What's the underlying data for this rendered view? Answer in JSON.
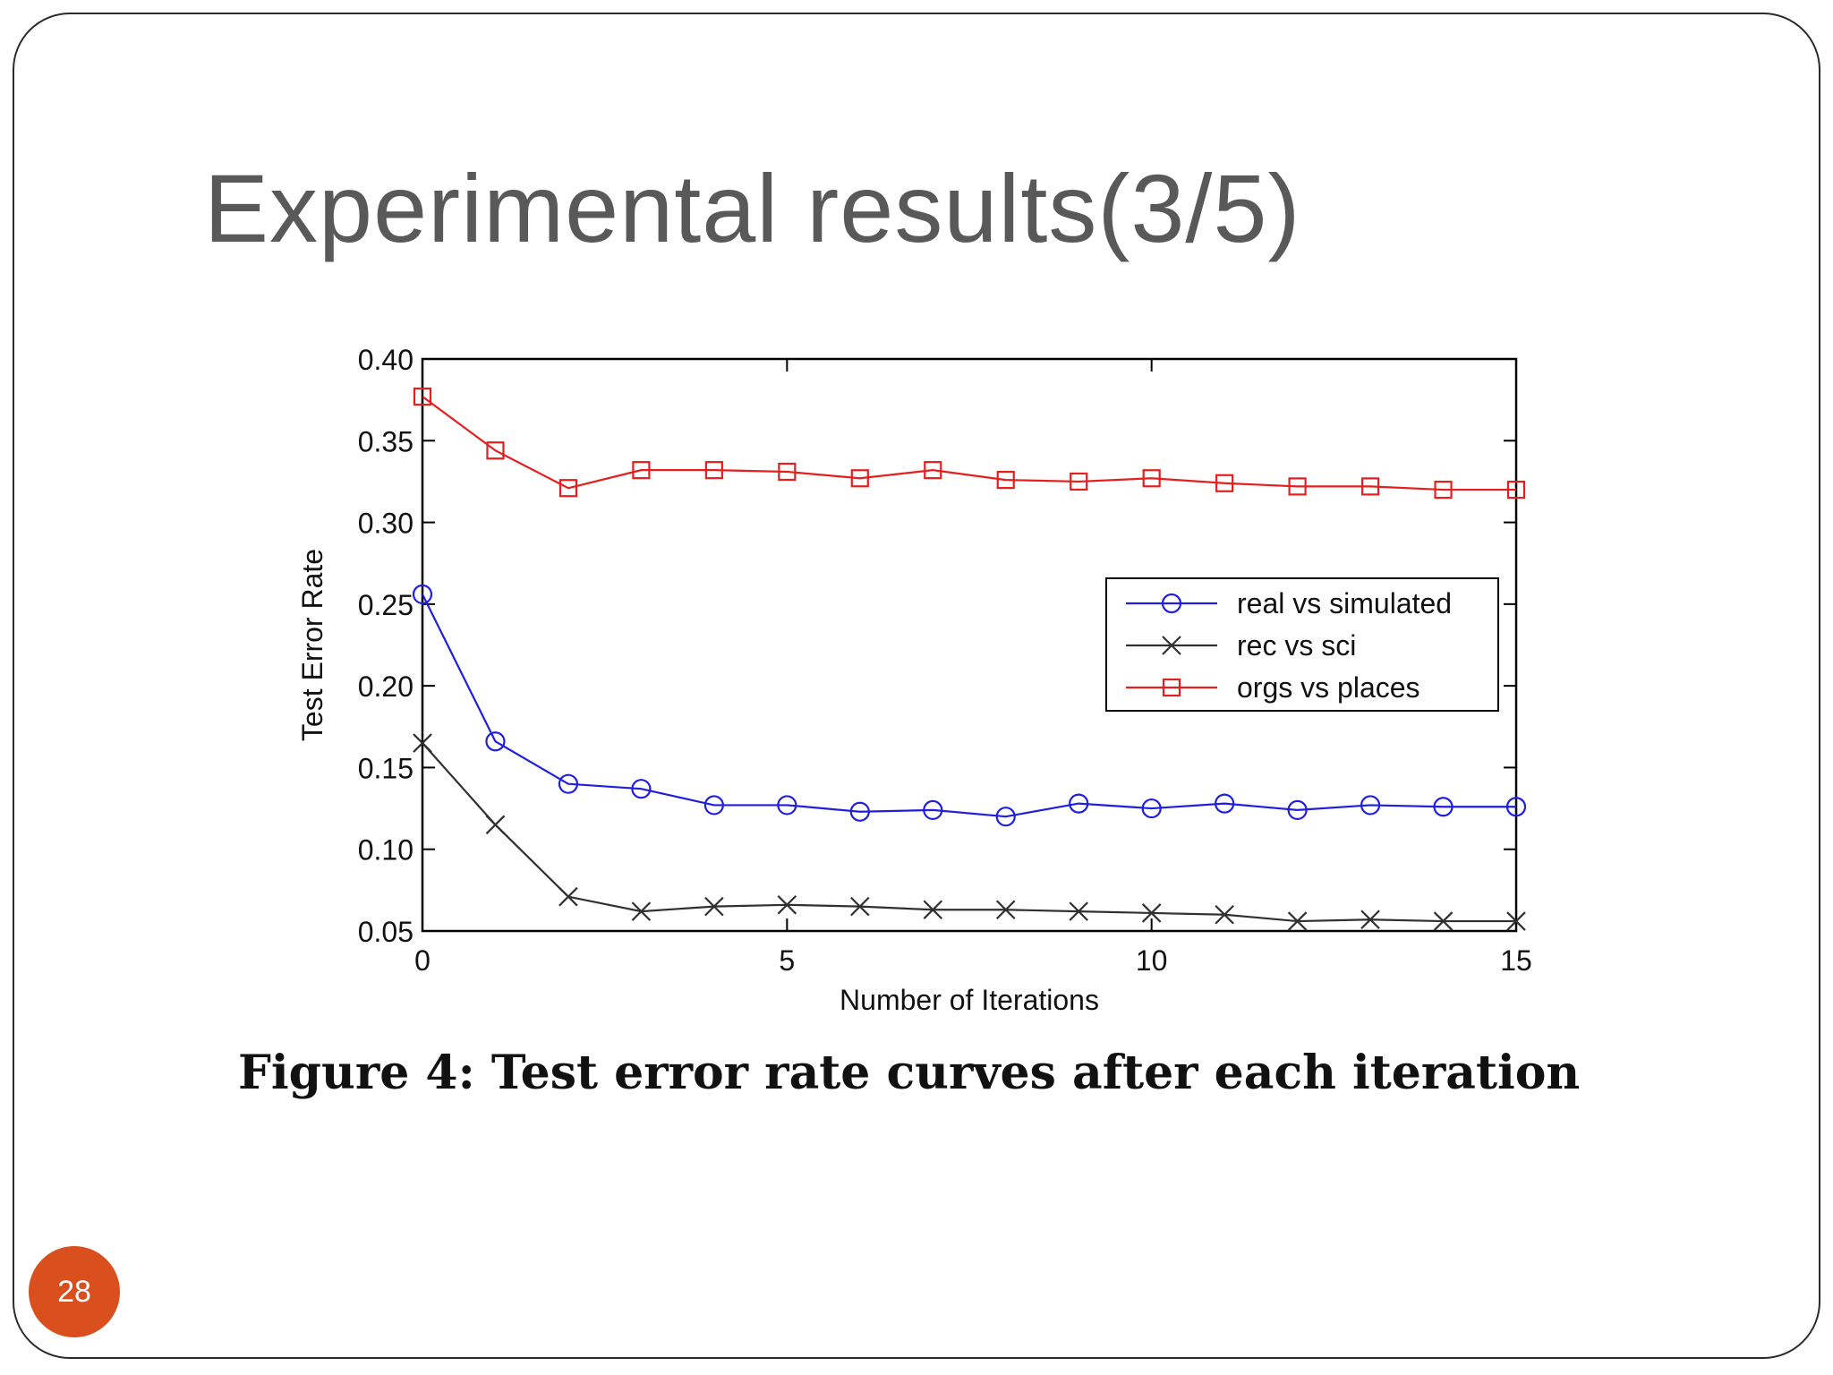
{
  "slide": {
    "title": "Experimental results(3/5)",
    "caption": "Figure 4: Test error rate curves after each iteration",
    "page_number": "28",
    "accent_color": "#d9501e"
  },
  "chart_data": {
    "type": "line",
    "title": "",
    "xlabel": "Number of Iterations",
    "ylabel": "Test Error Rate",
    "xlim": [
      0,
      15
    ],
    "ylim": [
      0.05,
      0.4
    ],
    "xticks": [
      0,
      5,
      10,
      15
    ],
    "xtick_labels": [
      "0",
      "5",
      "10",
      "15"
    ],
    "yticks": [
      0.05,
      0.1,
      0.15,
      0.2,
      0.25,
      0.3,
      0.35,
      0.4
    ],
    "ytick_labels": [
      "0.05",
      "0.10",
      "0.15",
      "0.20",
      "0.25",
      "0.30",
      "0.35",
      "0.40"
    ],
    "grid": false,
    "legend_position": "right",
    "x": [
      0,
      1,
      2,
      3,
      4,
      5,
      6,
      7,
      8,
      9,
      10,
      11,
      12,
      13,
      14,
      15
    ],
    "series": [
      {
        "name": "real vs simulated",
        "color": "#1f1fe0",
        "marker": "circle",
        "values": [
          0.256,
          0.166,
          0.14,
          0.137,
          0.127,
          0.127,
          0.123,
          0.124,
          0.12,
          0.128,
          0.125,
          0.128,
          0.124,
          0.127,
          0.126,
          0.126
        ]
      },
      {
        "name": "rec vs sci",
        "color": "#303030",
        "marker": "x",
        "values": [
          0.165,
          0.115,
          0.071,
          0.062,
          0.065,
          0.066,
          0.065,
          0.063,
          0.063,
          0.062,
          0.061,
          0.06,
          0.056,
          0.057,
          0.056,
          0.056
        ]
      },
      {
        "name": "orgs vs places",
        "color": "#e61e1e",
        "marker": "square",
        "values": [
          0.377,
          0.344,
          0.321,
          0.332,
          0.332,
          0.331,
          0.327,
          0.332,
          0.326,
          0.325,
          0.327,
          0.324,
          0.322,
          0.322,
          0.32,
          0.32
        ]
      }
    ]
  }
}
